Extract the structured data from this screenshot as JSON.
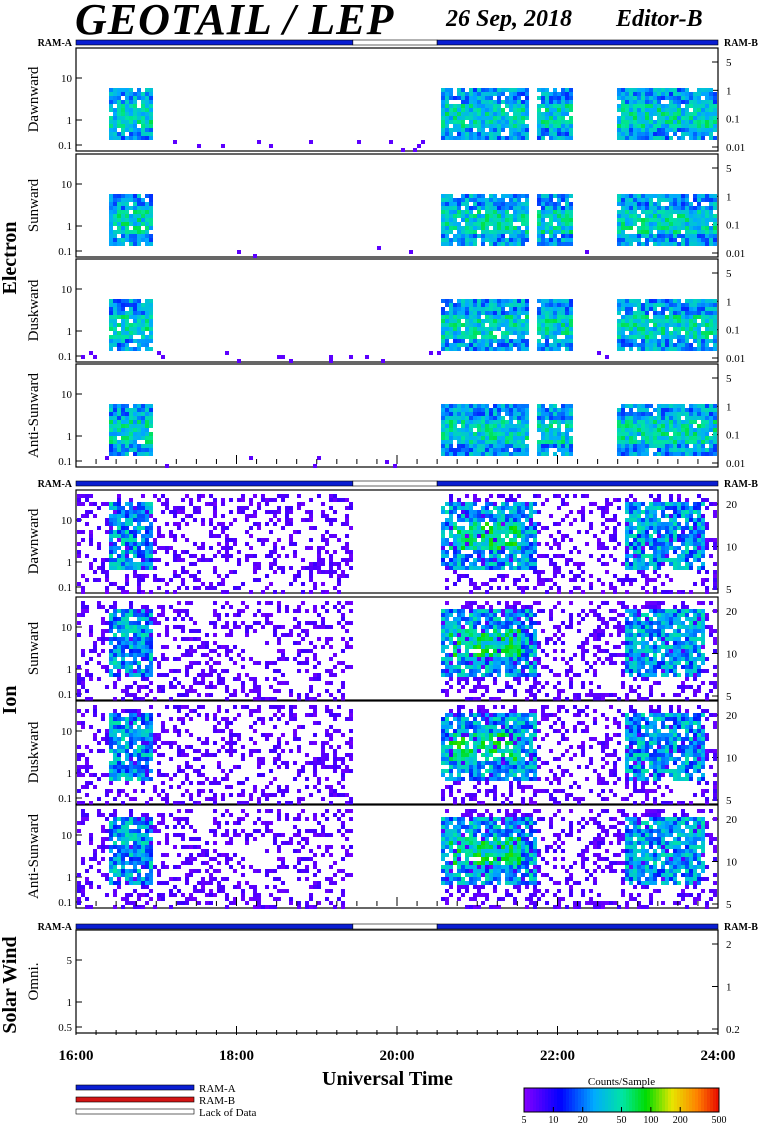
{
  "header": {
    "title": "GEOTAIL / LEP",
    "date": "26 Sep, 2018",
    "editor": "Editor-B"
  },
  "chart_data": {
    "type": "heatmap",
    "description_labels": {
      "left_ram": "RAM-A",
      "right_ram": "RAM-B"
    },
    "xlabel": "Universal Time",
    "x_ticks": [
      "16:00",
      "18:00",
      "20:00",
      "22:00",
      "24:00"
    ],
    "x_range_hours": [
      16,
      24
    ],
    "groups": [
      {
        "name": "Electron",
        "panels": [
          {
            "label": "Dawnward",
            "yticks": [
              "10",
              "1",
              "0.1"
            ],
            "right_ticks": [
              "5",
              "1",
              "0.1",
              "0.01"
            ]
          },
          {
            "label": "Sunward",
            "yticks": [
              "10",
              "1",
              "0.1"
            ],
            "right_ticks": [
              "5",
              "1",
              "0.1",
              "0.01"
            ]
          },
          {
            "label": "Duskward",
            "yticks": [
              "10",
              "1",
              "0.1"
            ],
            "right_ticks": [
              "5",
              "1",
              "0.1",
              "0.01"
            ]
          },
          {
            "label": "Anti-Sunward",
            "yticks": [
              "10",
              "1",
              "0.1"
            ],
            "right_ticks": [
              "5",
              "1",
              "0.1",
              "0.01"
            ]
          }
        ]
      },
      {
        "name": "Ion",
        "panels": [
          {
            "label": "Dawnward",
            "yticks": [
              "10",
              "1",
              "0.1"
            ],
            "right_ticks": [
              "20",
              "10",
              "5"
            ]
          },
          {
            "label": "Sunward",
            "yticks": [
              "10",
              "1",
              "0.1"
            ],
            "right_ticks": [
              "20",
              "10",
              "5"
            ]
          },
          {
            "label": "Duskward",
            "yticks": [
              "10",
              "1",
              "0.1"
            ],
            "right_ticks": [
              "20",
              "10",
              "5"
            ]
          },
          {
            "label": "Anti-Sunward",
            "yticks": [
              "10",
              "1",
              "0.1"
            ],
            "right_ticks": [
              "20",
              "10",
              "5"
            ]
          }
        ]
      },
      {
        "name": "Solar Wind",
        "panels": [
          {
            "label": "Omni.",
            "yticks": [
              "5",
              "1",
              "0.5"
            ],
            "right_ticks": [
              "2",
              "1",
              "0.2"
            ]
          }
        ]
      }
    ],
    "mode_segments_hours": [
      {
        "mode": "RAM-A",
        "start": 16.0,
        "end": 19.45
      },
      {
        "mode": "Lack of Data",
        "start": 19.45,
        "end": 20.5
      },
      {
        "mode": "RAM-A",
        "start": 20.5,
        "end": 24.0
      }
    ],
    "data_intervals_hours": {
      "electron": [
        [
          16.4,
          16.95
        ],
        [
          20.5,
          21.6
        ],
        [
          21.7,
          22.15
        ],
        [
          22.7,
          23.95
        ]
      ],
      "ion": [
        [
          16.0,
          19.45
        ],
        [
          20.5,
          24.0
        ]
      ]
    },
    "legend": [
      {
        "label": "RAM-A",
        "color": "#0a1ed2"
      },
      {
        "label": "RAM-B",
        "color": "#d21414"
      },
      {
        "label": "Lack of Data",
        "color": "#ffffff"
      }
    ],
    "colorbar": {
      "title": "Counts/Sample",
      "ticks": [
        "5",
        "10",
        "20",
        "50",
        "100",
        "200",
        "500"
      ],
      "scale": "log"
    }
  }
}
